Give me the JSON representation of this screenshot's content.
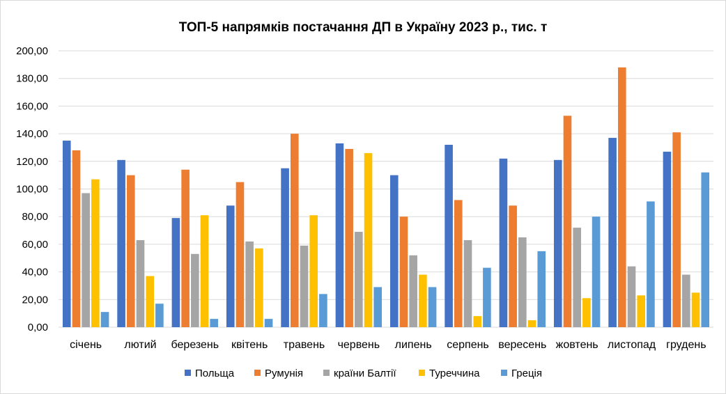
{
  "chart_data": {
    "type": "bar",
    "title": "ТОП-5 напрямків постачання ДП в Україну 2023 р., тис. т",
    "xlabel": "",
    "ylabel": "",
    "ylim": [
      0,
      200
    ],
    "ytick_labels": [
      "0,00",
      "20,00",
      "40,00",
      "60,00",
      "80,00",
      "100,00",
      "120,00",
      "140,00",
      "160,00",
      "180,00",
      "200,00"
    ],
    "grid": true,
    "legend_position": "bottom",
    "categories": [
      "січень",
      "лютий",
      "березень",
      "квітень",
      "травень",
      "червень",
      "липень",
      "серпень",
      "вересень",
      "жовтень",
      "листопад",
      "грудень"
    ],
    "series": [
      {
        "name": "Польща",
        "color": "#4472c4",
        "values": [
          135,
          121,
          79,
          88,
          115,
          133,
          110,
          132,
          122,
          121,
          137,
          127
        ]
      },
      {
        "name": "Румунія",
        "color": "#ed7d31",
        "values": [
          128,
          110,
          114,
          105,
          140,
          129,
          80,
          92,
          88,
          153,
          188,
          141
        ]
      },
      {
        "name": "країни Балтії",
        "color": "#a5a5a5",
        "values": [
          97,
          63,
          53,
          62,
          59,
          69,
          52,
          63,
          65,
          72,
          44,
          38
        ]
      },
      {
        "name": "Туреччина",
        "color": "#ffc000",
        "values": [
          107,
          37,
          81,
          57,
          81,
          126,
          38,
          8,
          5,
          21,
          23,
          25
        ]
      },
      {
        "name": "Греція",
        "color": "#5b9bd5",
        "values": [
          11,
          17,
          6,
          6,
          24,
          29,
          29,
          43,
          55,
          80,
          91,
          112
        ]
      }
    ]
  }
}
